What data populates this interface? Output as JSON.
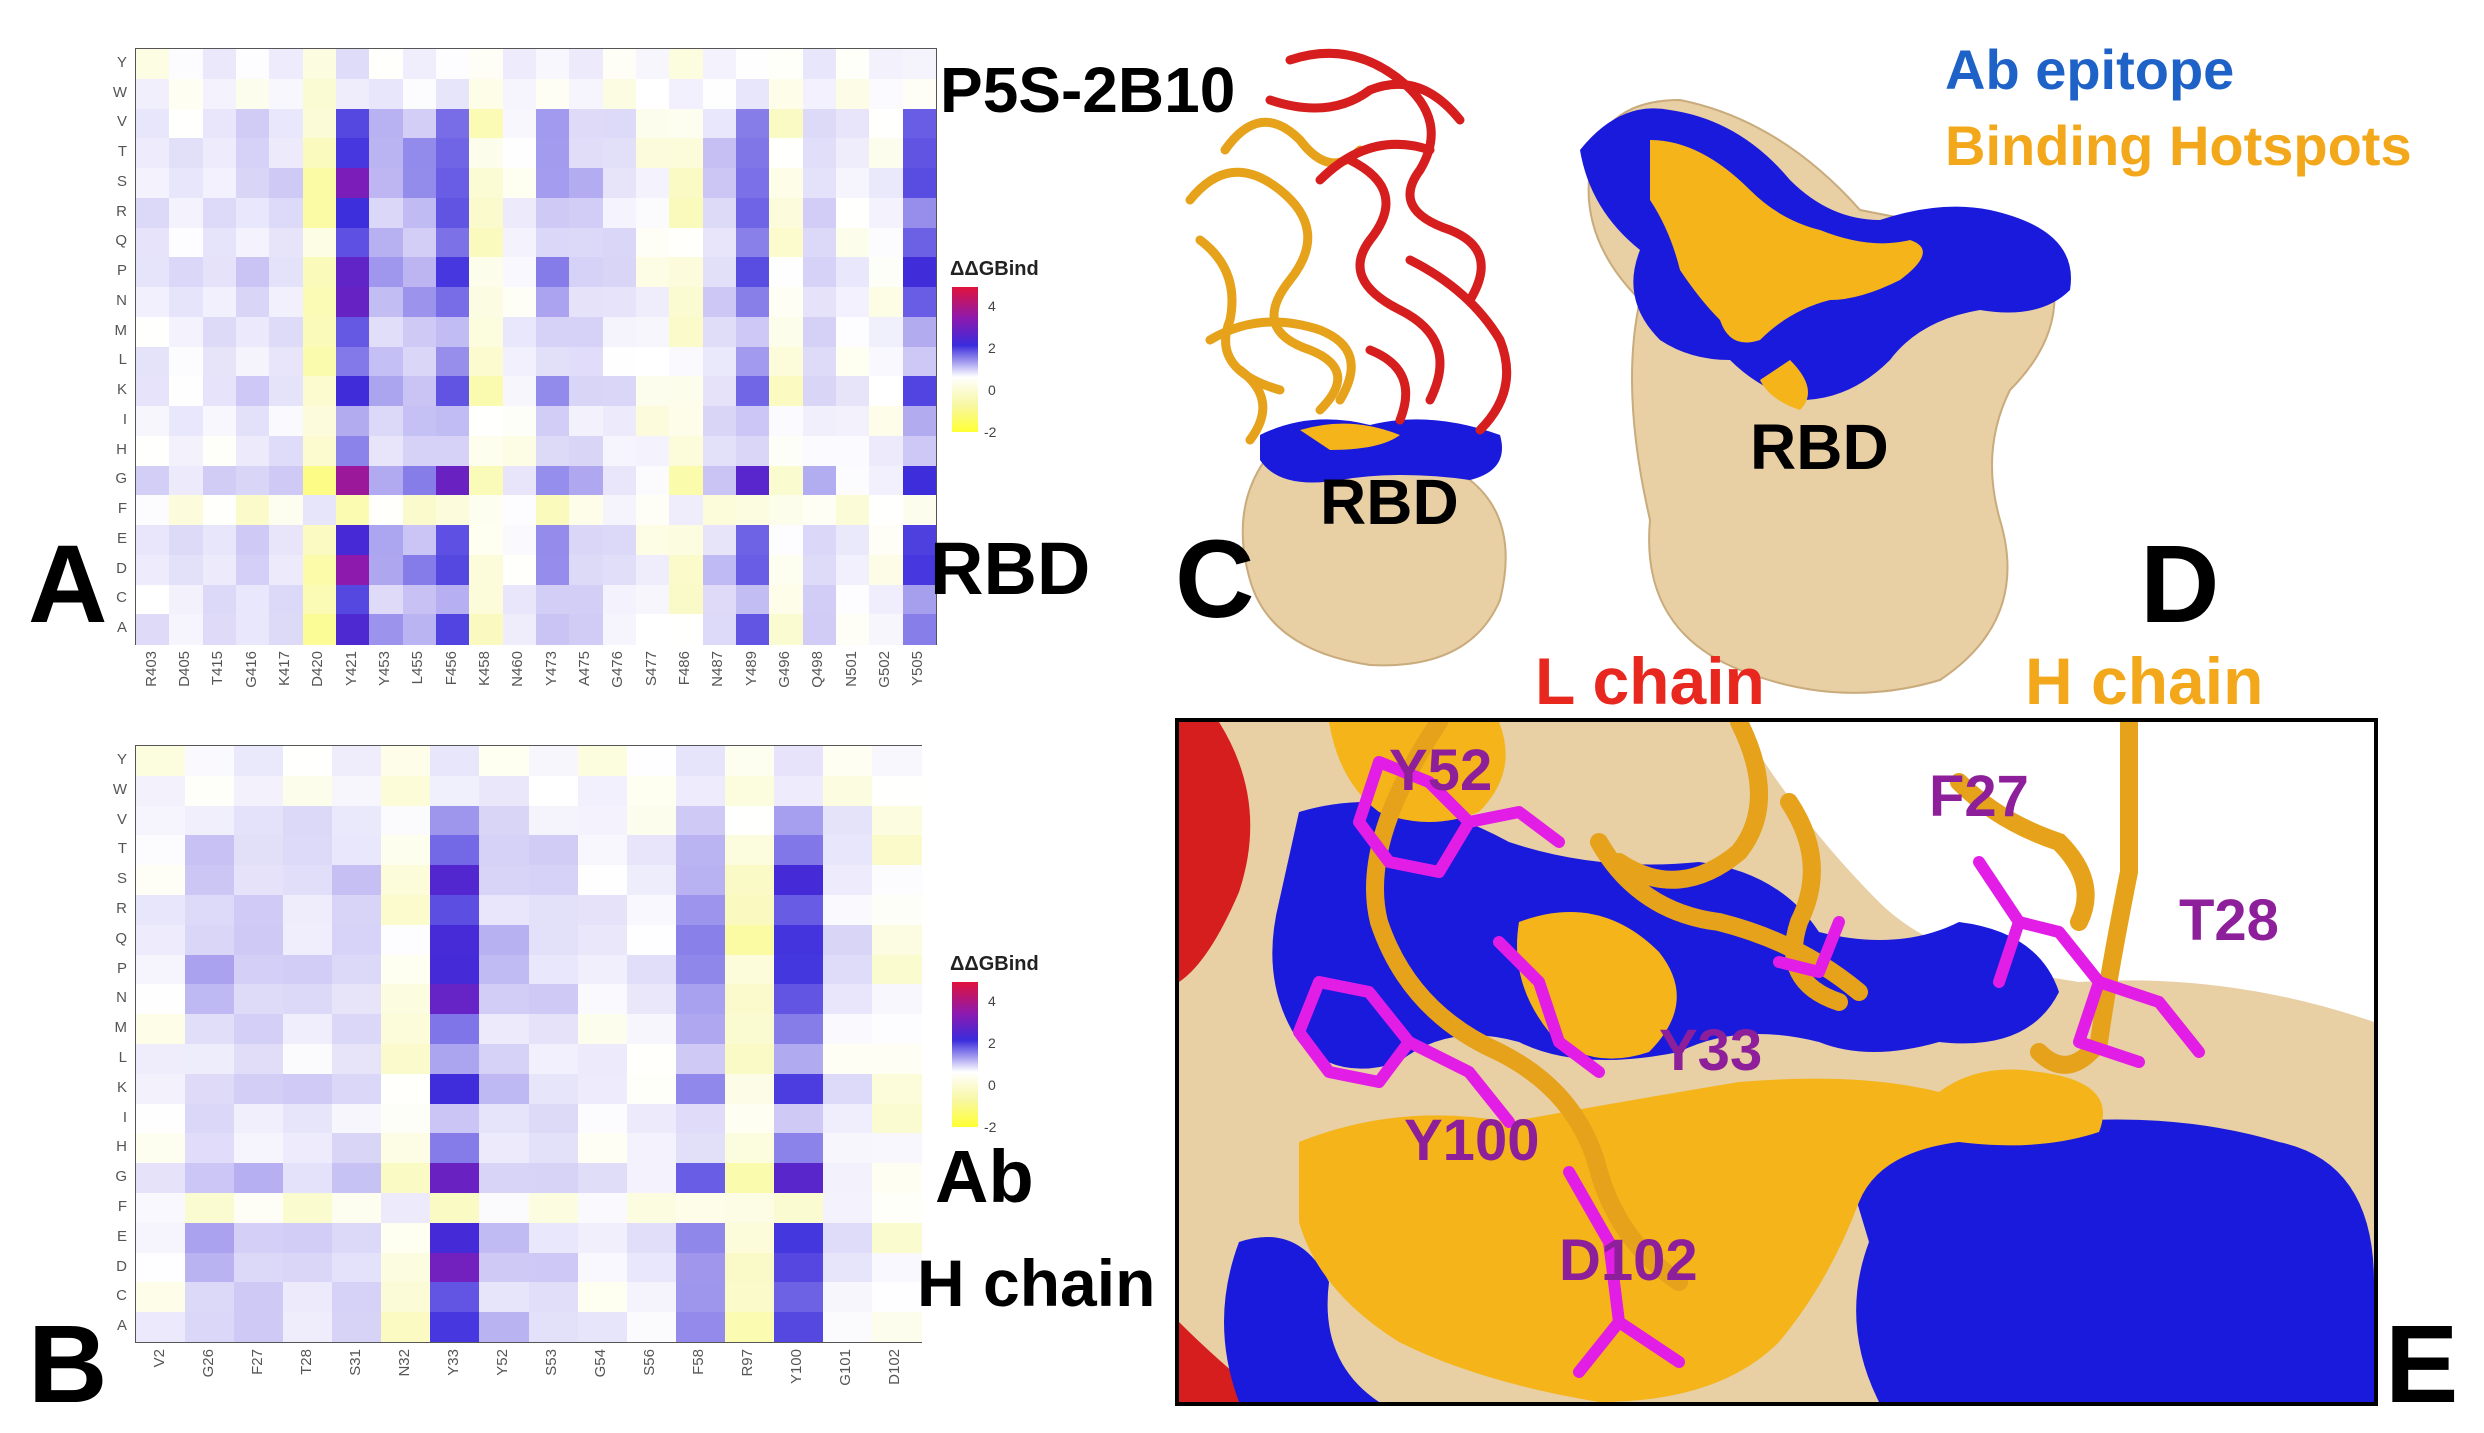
{
  "panel_letters": {
    "a": "A",
    "b": "B",
    "c": "C",
    "d": "D",
    "e": "E"
  },
  "labels": {
    "complex_name": "P5S-2B10",
    "rbd_label_a": "RBD",
    "ab_label": "Ab",
    "h_chain_label_b": "H chain",
    "rbd_in_c": "RBD",
    "rbd_in_d": "RBD",
    "legend_epitope": "Ab epitope",
    "legend_hotspots": "Binding Hotspots",
    "l_chain_label": "L chain",
    "h_chain_label_e": "H chain"
  },
  "colors": {
    "epitope_blue": "#1a1adc",
    "hotspot_orange": "#f4b41a",
    "rbd_tan": "#e8cfa4",
    "l_chain_red": "#d61e1e",
    "residue_magenta": "#e21de6",
    "residue_label_purple": "#8e1f9a",
    "h_chain_label_orange": "#f2a81a",
    "l_chain_label_red": "#e8281e",
    "epitope_label_blue": "#1e62c8"
  },
  "residue_labels": [
    "Y52",
    "F27",
    "T28",
    "Y33",
    "Y100",
    "D102"
  ],
  "mutations": [
    "Y",
    "W",
    "V",
    "T",
    "S",
    "R",
    "Q",
    "P",
    "N",
    "M",
    "L",
    "K",
    "I",
    "H",
    "G",
    "F",
    "E",
    "D",
    "C",
    "A"
  ],
  "chart_data": [
    {
      "type": "heatmap",
      "title": "",
      "xlabel": "",
      "ylabel": "",
      "legend_title": "ΔΔGBind",
      "legend_ticks": [
        "4",
        "2",
        "0",
        "-2"
      ],
      "value_range": [
        -2,
        5
      ],
      "x": [
        "R403",
        "D405",
        "T415",
        "G416",
        "K417",
        "D420",
        "Y421",
        "Y453",
        "L455",
        "F456",
        "K458",
        "N460",
        "Y473",
        "A475",
        "G476",
        "S477",
        "F486",
        "N487",
        "Y489",
        "G496",
        "Q498",
        "N501",
        "G502",
        "Y505"
      ],
      "y": [
        "Y",
        "W",
        "V",
        "T",
        "S",
        "R",
        "Q",
        "P",
        "N",
        "M",
        "L",
        "K",
        "I",
        "H",
        "G",
        "F",
        "E",
        "D",
        "C",
        "A"
      ],
      "column_typical": [
        0.5,
        0.4,
        0.6,
        0.8,
        0.7,
        -0.8,
        3.2,
        1.4,
        1.5,
        2.4,
        -0.5,
        0.2,
        1.5,
        1.0,
        0.6,
        0.0,
        -0.4,
        0.9,
        2.2,
        -0.3,
        0.9,
        0.2,
        0.1,
        2.4
      ],
      "row_scale": [
        0.15,
        0.1,
        0.75,
        0.85,
        0.95,
        0.75,
        0.7,
        1.0,
        0.85,
        0.6,
        0.55,
        0.85,
        0.5,
        0.45,
        1.15,
        -0.2,
        0.9,
        1.0,
        0.65,
        0.85
      ]
    },
    {
      "type": "heatmap",
      "title": "",
      "xlabel": "",
      "ylabel": "",
      "legend_title": "ΔΔGBind",
      "legend_ticks": [
        "4",
        "2",
        "0",
        "-2"
      ],
      "value_range": [
        -2,
        5
      ],
      "x": [
        "V2",
        "G26",
        "F27",
        "T28",
        "S31",
        "N32",
        "Y33",
        "Y52",
        "S53",
        "G54",
        "S56",
        "F58",
        "R97",
        "Y100",
        "G101",
        "D102"
      ],
      "y": [
        "Y",
        "W",
        "V",
        "T",
        "S",
        "R",
        "Q",
        "P",
        "N",
        "M",
        "L",
        "K",
        "I",
        "H",
        "G",
        "F",
        "E",
        "D",
        "C",
        "A"
      ],
      "column_typical": [
        0.2,
        1.1,
        1.0,
        0.7,
        0.9,
        -0.3,
        3.0,
        1.1,
        0.8,
        0.3,
        0.3,
        1.8,
        -0.6,
        2.7,
        0.5,
        -0.2
      ],
      "row_scale": [
        0.1,
        0.1,
        0.55,
        0.75,
        0.85,
        0.7,
        0.9,
        0.95,
        0.9,
        0.55,
        0.45,
        0.9,
        0.45,
        0.5,
        1.0,
        -0.15,
        0.95,
        0.95,
        0.65,
        0.8
      ]
    }
  ]
}
